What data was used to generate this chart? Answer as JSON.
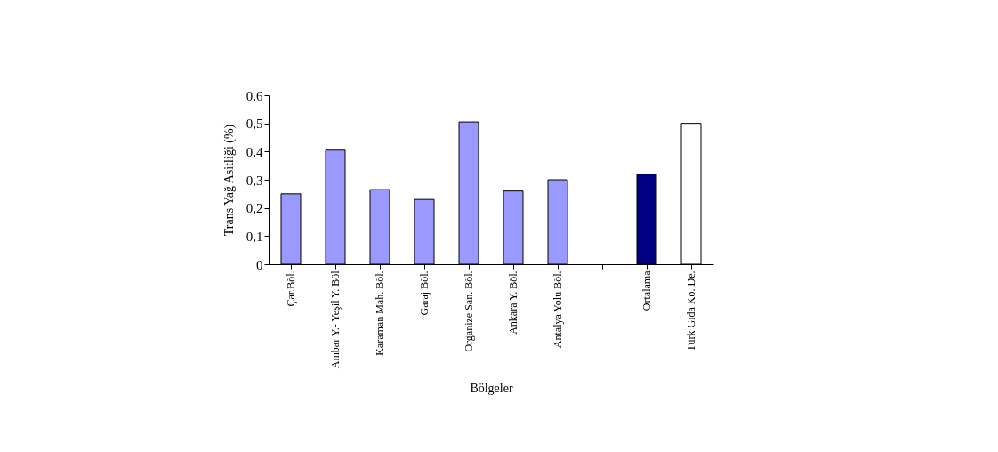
{
  "chart_data": {
    "type": "bar",
    "xlabel": "Bölgeler",
    "ylabel": "Trans Yağ Asitliği (%)",
    "categories": [
      "Çar.Böl.",
      "Ambar Y.- Yeşil Y. Böl",
      "Karaman Mah.  Böl.",
      "Garaj Böl.",
      "Organize San.  Böl.",
      "Ankara Y.  Böl.",
      "Antalya  Yolu Böl.",
      null,
      "Ortalama",
      "Türk Gıda Ko. De."
    ],
    "values": [
      0.25,
      0.405,
      0.265,
      0.23,
      0.505,
      0.26,
      0.3,
      null,
      0.32,
      0.5
    ],
    "colors": [
      "#9999ff",
      "#9999ff",
      "#9999ff",
      "#9999ff",
      "#9999ff",
      "#9999ff",
      "#9999ff",
      "#9999ff",
      "#000080",
      "#ffffff"
    ],
    "ylim": [
      0,
      0.6
    ],
    "yticks": [
      0,
      {
        "value": 0.1,
        "label": "0,1"
      },
      {
        "value": 0.2,
        "label": "0,2"
      },
      {
        "value": 0.3,
        "label": "0,3"
      },
      {
        "value": 0.4,
        "label": "0,4"
      },
      {
        "value": 0.5,
        "label": "0,5"
      },
      {
        "value": 0.6,
        "label": "0,6"
      }
    ],
    "grid": false
  }
}
